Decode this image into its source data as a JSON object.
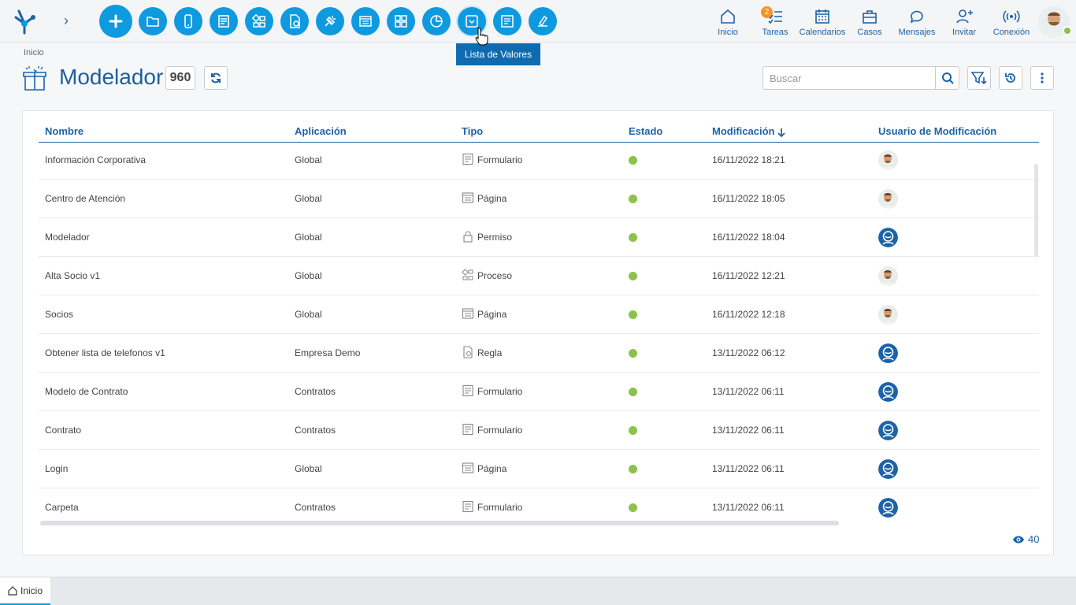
{
  "topbar": {
    "tooltip": "Lista de Valores",
    "nav": [
      {
        "label": "Inicio",
        "icon": "home-icon"
      },
      {
        "label": "Tareas",
        "icon": "tasks-icon",
        "badge": "2"
      },
      {
        "label": "Calendarios",
        "icon": "calendar-icon"
      },
      {
        "label": "Casos",
        "icon": "briefcase-icon"
      },
      {
        "label": "Mensajes",
        "icon": "chat-icon"
      },
      {
        "label": "Invitar",
        "icon": "invite-icon"
      },
      {
        "label": "Conexión",
        "icon": "connection-icon"
      }
    ]
  },
  "header": {
    "breadcrumb": "Inicio",
    "title": "Modelador",
    "count": "960",
    "search_placeholder": "Buscar"
  },
  "table": {
    "columns": [
      "Nombre",
      "Aplicación",
      "Tipo",
      "Estado",
      "Modificación",
      "Usuario de Modificación"
    ],
    "rows": [
      {
        "name": "Información Corporativa",
        "app": "Global",
        "type": "Formulario",
        "date": "16/11/2022 18:21",
        "user": "photo"
      },
      {
        "name": "Centro de Atención",
        "app": "Global",
        "type": "Página",
        "date": "16/11/2022 18:05",
        "user": "photo"
      },
      {
        "name": "Modelador",
        "app": "Global",
        "type": "Permiso",
        "date": "16/11/2022 18:04",
        "user": "system"
      },
      {
        "name": "Alta Socio v1",
        "app": "Global",
        "type": "Proceso",
        "date": "16/11/2022 12:21",
        "user": "photo"
      },
      {
        "name": "Socios",
        "app": "Global",
        "type": "Página",
        "date": "16/11/2022 12:18",
        "user": "photo"
      },
      {
        "name": "Obtener lista de telefonos v1",
        "app": "Empresa Demo",
        "type": "Regla",
        "date": "13/11/2022 06:12",
        "user": "system"
      },
      {
        "name": "Modelo de Contrato",
        "app": "Contratos",
        "type": "Formulario",
        "date": "13/11/2022 06:11",
        "user": "system"
      },
      {
        "name": "Contrato",
        "app": "Contratos",
        "type": "Formulario",
        "date": "13/11/2022 06:11",
        "user": "system"
      },
      {
        "name": "Login",
        "app": "Global",
        "type": "Página",
        "date": "13/11/2022 06:11",
        "user": "system"
      },
      {
        "name": "Carpeta",
        "app": "Contratos",
        "type": "Formulario",
        "date": "13/11/2022 06:11",
        "user": "system"
      }
    ],
    "status_color": "#8bc34a",
    "view_count": "40"
  },
  "tabs": [
    {
      "label": "Inicio"
    }
  ],
  "colors": {
    "accent": "#0f9ae0",
    "primary": "#1c63a8",
    "badge": "#f39423"
  }
}
